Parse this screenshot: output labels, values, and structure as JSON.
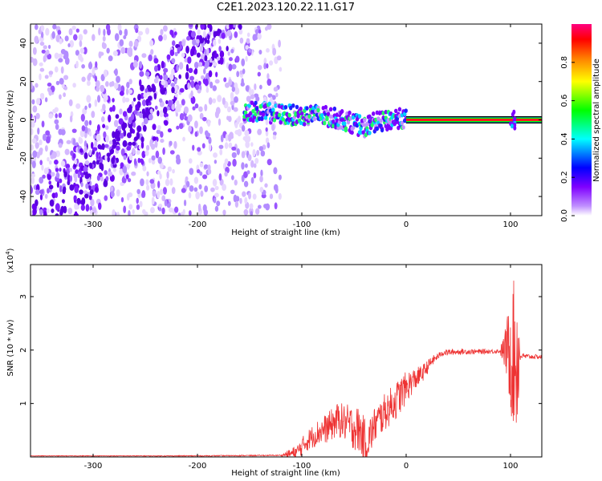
{
  "title": "C2E1.2023.120.22.11.G17",
  "chart_data": [
    {
      "type": "heatmap",
      "xlabel": "Height of straight line (km)",
      "ylabel": "Frequency (Hz)",
      "xlim": [
        -360,
        130
      ],
      "ylim": [
        -50,
        50
      ],
      "xticks": [
        -300,
        -200,
        -100,
        0,
        100
      ],
      "xtick_labels": [
        "-300",
        "-200",
        "-100",
        "0",
        "100"
      ],
      "yticks": [
        -40,
        -20,
        0,
        20,
        40
      ],
      "ytick_labels": [
        "-40",
        "-20",
        "0",
        "20",
        "40"
      ],
      "colorbar": {
        "label": "Normalized spectral amplitude",
        "range": [
          0,
          1
        ],
        "ticks": [
          0,
          0.2,
          0.4,
          0.6,
          0.8
        ],
        "tick_labels": [
          "0.0",
          "0.2",
          "0.4",
          "0.6",
          "0.8"
        ],
        "colormap": [
          "#ffffff",
          "#7f00ff",
          "#0000ff",
          "#00ffff",
          "#00ff00",
          "#ffff00",
          "#ff8000",
          "#ff0000",
          "#ff00aa"
        ]
      },
      "features": {
        "noise_region_x": [
          -360,
          -120
        ],
        "signal_track": [
          [
            -155,
            5
          ],
          [
            -140,
            4
          ],
          [
            -120,
            3
          ],
          [
            -100,
            2
          ],
          [
            -90,
            3
          ],
          [
            -80,
            2
          ],
          [
            -70,
            1
          ],
          [
            -60,
            0
          ],
          [
            -50,
            -2
          ],
          [
            -40,
            -4
          ],
          [
            -30,
            -1
          ],
          [
            -20,
            -1
          ],
          [
            -10,
            1
          ],
          [
            0,
            0
          ],
          [
            130,
            0
          ]
        ],
        "stable_line_from_x": 0,
        "stable_line_y": 0
      }
    },
    {
      "type": "line",
      "xlabel": "Height of straight line (km)",
      "ylabel": "SNR (10 * v/v)",
      "yunit_label": "(x10",
      "yunit_exp": "4",
      "yunit_close": ")",
      "xlim": [
        -360,
        130
      ],
      "ylim": [
        0,
        3.6
      ],
      "xticks": [
        -300,
        -200,
        -100,
        0,
        100
      ],
      "xtick_labels": [
        "-300",
        "-200",
        "-100",
        "0",
        "100"
      ],
      "yticks": [
        1,
        2,
        3
      ],
      "ytick_labels": [
        "1",
        "2",
        "3"
      ],
      "color": "#ee3333",
      "envelope": [
        [
          -360,
          0.02
        ],
        [
          -200,
          0.02
        ],
        [
          -120,
          0.03
        ],
        [
          -105,
          0.08
        ],
        [
          -95,
          0.3
        ],
        [
          -85,
          0.45
        ],
        [
          -75,
          0.55
        ],
        [
          -65,
          0.7
        ],
        [
          -55,
          0.6
        ],
        [
          -45,
          0.5
        ],
        [
          -38,
          0.25
        ],
        [
          -30,
          0.6
        ],
        [
          -20,
          0.85
        ],
        [
          -10,
          1.05
        ],
        [
          -2,
          1.25
        ],
        [
          5,
          1.4
        ],
        [
          15,
          1.55
        ],
        [
          25,
          1.8
        ],
        [
          35,
          1.95
        ],
        [
          50,
          1.97
        ],
        [
          70,
          1.97
        ],
        [
          90,
          1.98
        ],
        [
          98,
          2.0
        ],
        [
          100,
          2.0
        ],
        [
          103,
          1.9
        ],
        [
          106,
          1.9
        ],
        [
          115,
          1.88
        ],
        [
          130,
          1.87
        ]
      ],
      "noise_amplitude": [
        [
          -360,
          0.005
        ],
        [
          -120,
          0.01
        ],
        [
          -105,
          0.15
        ],
        [
          -60,
          0.35
        ],
        [
          -45,
          0.45
        ],
        [
          -30,
          0.35
        ],
        [
          -5,
          0.35
        ],
        [
          10,
          0.2
        ],
        [
          30,
          0.06
        ],
        [
          90,
          0.04
        ],
        [
          96,
          0.5
        ],
        [
          100,
          1.2
        ],
        [
          106,
          1.6
        ],
        [
          110,
          0.05
        ],
        [
          130,
          0.04
        ]
      ]
    }
  ]
}
